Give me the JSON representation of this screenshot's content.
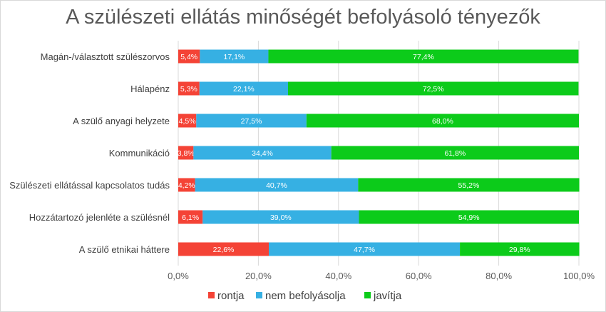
{
  "chart_data": {
    "type": "bar",
    "orientation": "horizontal",
    "stacked": "100%",
    "title": "A szülészeti ellátás minőségét befolyásoló tényezők",
    "categories": [
      "Magán-/választott szülészorvos",
      "Hálapénz",
      "A szülő anyagi helyzete",
      "Kommunikáció",
      "Szülészeti ellátással kapcsolatos tudás",
      "Hozzátartozó jelenléte a szülésnél",
      "A szülő etnikai háttere"
    ],
    "series": [
      {
        "name": "rontja",
        "color": "#f44336",
        "values": [
          5.4,
          5.3,
          4.5,
          3.8,
          4.2,
          6.1,
          22.6
        ],
        "labels": [
          "5,4%",
          "5,3%",
          "4,5%",
          "3,8%",
          "4,2%",
          "6,1%",
          "22,6%"
        ]
      },
      {
        "name": "nem befolyásolja",
        "color": "#36b0e3",
        "values": [
          17.1,
          22.1,
          27.5,
          34.4,
          40.7,
          39.0,
          47.7
        ],
        "labels": [
          "17,1%",
          "22,1%",
          "27,5%",
          "34,4%",
          "40,7%",
          "39,0%",
          "47,7%"
        ]
      },
      {
        "name": "javítja",
        "color": "#0ccb1a",
        "values": [
          77.4,
          72.5,
          68.0,
          61.8,
          55.2,
          54.9,
          29.8
        ],
        "labels": [
          "77,4%",
          "72,5%",
          "68,0%",
          "61,8%",
          "55,2%",
          "54,9%",
          "29,8%"
        ]
      }
    ],
    "xlim": [
      0,
      100
    ],
    "xticks": [
      "0,0%",
      "20,0%",
      "40,0%",
      "60,0%",
      "80,0%",
      "100,0%"
    ],
    "grid": true,
    "legend": "bottom"
  }
}
